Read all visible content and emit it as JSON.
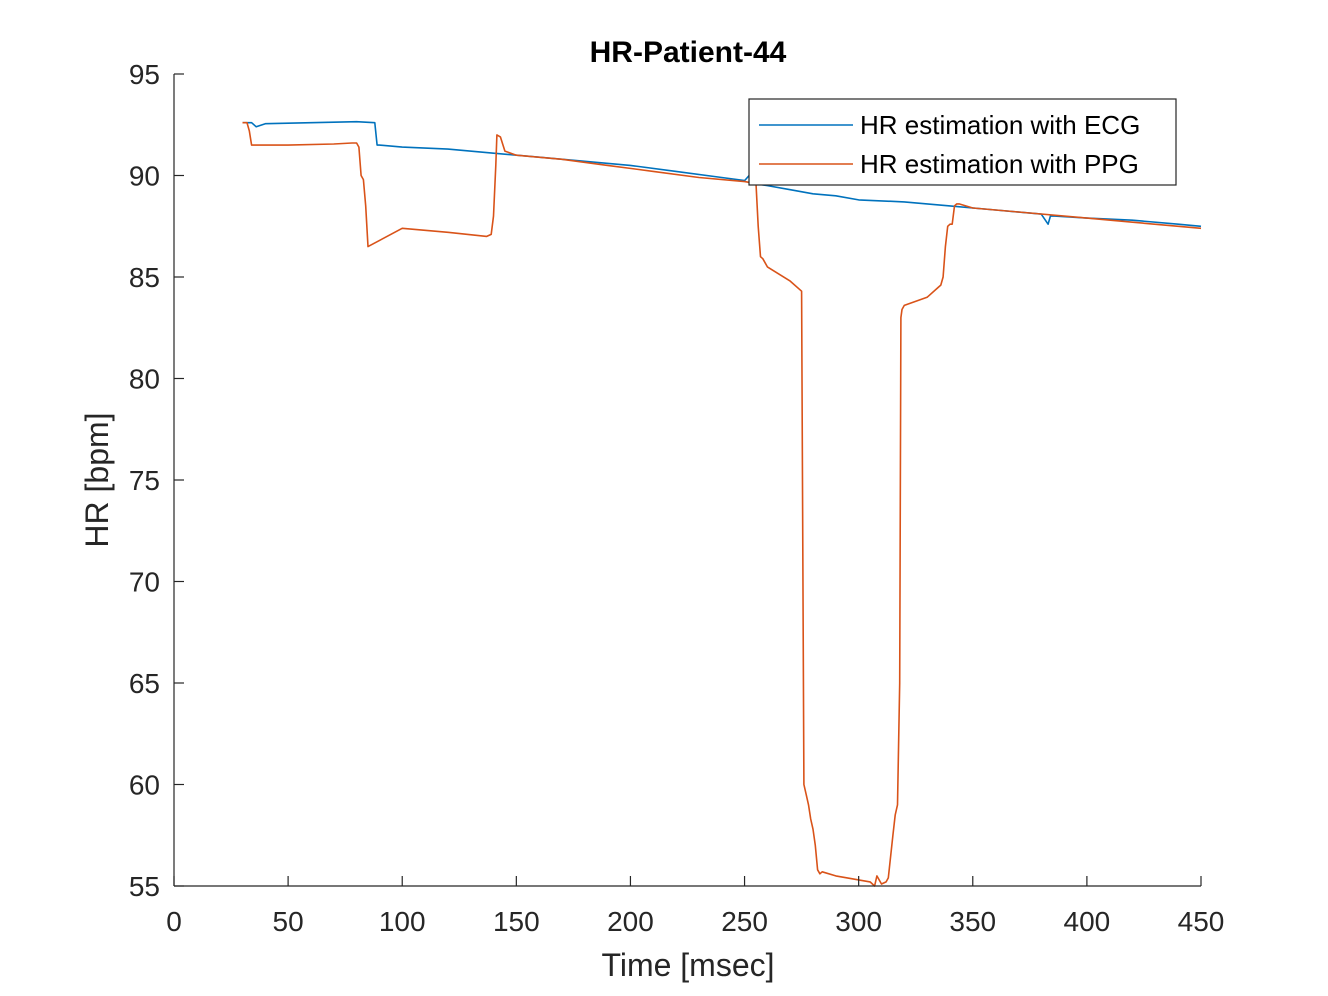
{
  "chart_data": {
    "type": "line",
    "title": "HR-Patient-44",
    "xlabel": "Time [msec]",
    "ylabel": "HR [bpm]",
    "xlim": [
      0,
      450
    ],
    "ylim": [
      55,
      95
    ],
    "xticks": [
      0,
      50,
      100,
      150,
      200,
      250,
      300,
      350,
      400,
      450
    ],
    "yticks": [
      55,
      60,
      65,
      70,
      75,
      80,
      85,
      90,
      95
    ],
    "grid": false,
    "legend_position": "top-right",
    "series": [
      {
        "name": "HR estimation with ECG",
        "color": "#0072BD",
        "x": [
          30,
          34,
          36,
          40,
          60,
          80,
          88,
          89,
          90,
          100,
          120,
          140,
          160,
          180,
          200,
          220,
          240,
          250,
          252,
          255,
          257,
          260,
          270,
          280,
          290,
          300,
          320,
          340,
          360,
          380,
          383,
          384,
          386,
          400,
          420,
          440,
          450
        ],
        "y": [
          92.6,
          92.6,
          92.4,
          92.55,
          92.6,
          92.65,
          92.6,
          91.5,
          91.5,
          91.4,
          91.3,
          91.1,
          90.9,
          90.7,
          90.5,
          90.2,
          89.9,
          89.75,
          90.0,
          89.6,
          89.55,
          89.5,
          89.3,
          89.1,
          89.0,
          88.8,
          88.7,
          88.5,
          88.3,
          88.1,
          87.6,
          88.0,
          88.0,
          87.9,
          87.8,
          87.6,
          87.5
        ]
      },
      {
        "name": "HR estimation with PPG",
        "color": "#D95319",
        "x": [
          30,
          32,
          33,
          34,
          50,
          70,
          78,
          80,
          81,
          82,
          83,
          84,
          85,
          100,
          120,
          137,
          139,
          140,
          141,
          141.5,
          143,
          145,
          150,
          170,
          190,
          210,
          230,
          250,
          255,
          256,
          257,
          258,
          260,
          270,
          275,
          276,
          277,
          278,
          279,
          280,
          281,
          282,
          283,
          284,
          290,
          295,
          300,
          305,
          307,
          308,
          310,
          312,
          313,
          315,
          316,
          317,
          318,
          318.5,
          319,
          320,
          330,
          335,
          336,
          337,
          338,
          339,
          340,
          341,
          342,
          343,
          344,
          350,
          370,
          400,
          420,
          450
        ],
        "y": [
          92.6,
          92.6,
          92.2,
          91.5,
          91.5,
          91.55,
          91.6,
          91.6,
          91.4,
          90.0,
          89.8,
          88.5,
          86.5,
          87.4,
          87.2,
          87.0,
          87.1,
          88.0,
          90.5,
          92.0,
          91.9,
          91.2,
          91.0,
          90.8,
          90.5,
          90.2,
          89.9,
          89.7,
          89.6,
          87.5,
          86.0,
          85.9,
          85.5,
          84.8,
          84.3,
          60.0,
          59.5,
          59.0,
          58.3,
          57.8,
          57.0,
          55.8,
          55.6,
          55.7,
          55.5,
          55.4,
          55.3,
          55.2,
          55.0,
          55.5,
          55.1,
          55.2,
          55.4,
          57.5,
          58.5,
          59.0,
          65.0,
          83.0,
          83.4,
          83.6,
          84.0,
          84.5,
          84.6,
          85.0,
          86.5,
          87.5,
          87.6,
          87.6,
          88.5,
          88.6,
          88.6,
          88.4,
          88.2,
          87.9,
          87.7,
          87.4
        ]
      }
    ]
  }
}
